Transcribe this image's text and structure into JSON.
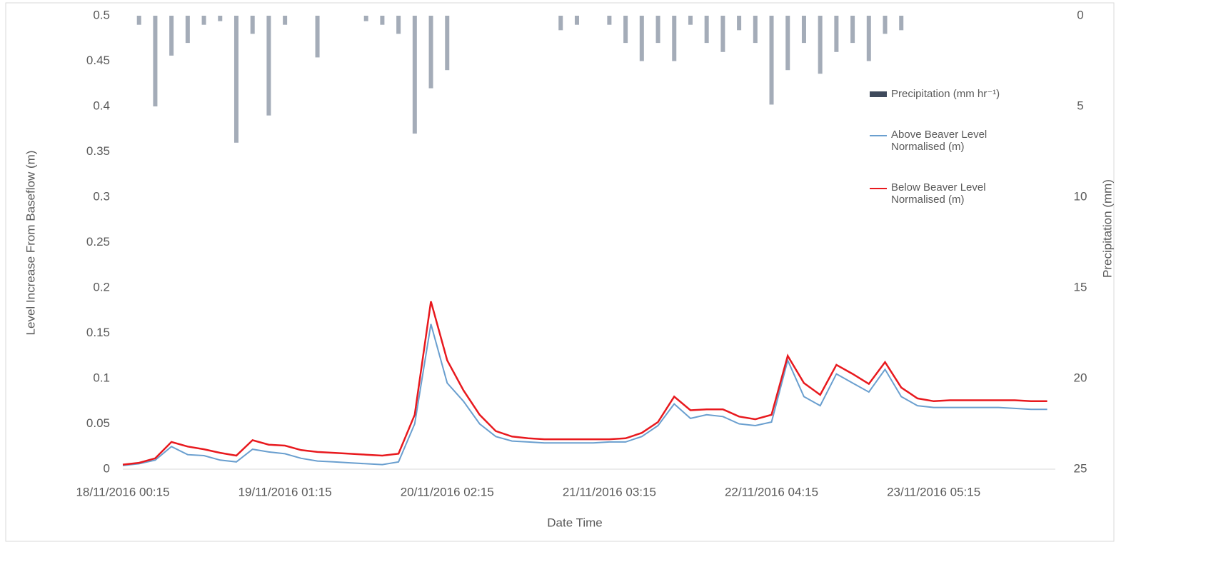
{
  "chart_data": {
    "type": "line",
    "x_label": "Date Time",
    "y_label": "Level Increase From Baseflow (m)",
    "y2_label": "Precipitation (mm)",
    "categories": [
      "18/11/2016 00:15",
      null,
      null,
      null,
      null,
      null,
      null,
      null,
      null,
      null,
      "19/11/2016 01:15",
      null,
      null,
      null,
      null,
      null,
      null,
      null,
      null,
      null,
      "20/11/2016 02:15",
      null,
      null,
      null,
      null,
      null,
      null,
      null,
      null,
      null,
      "21/11/2016 03:15",
      null,
      null,
      null,
      null,
      null,
      null,
      null,
      null,
      null,
      "22/11/2016 04:15",
      null,
      null,
      null,
      null,
      null,
      null,
      null,
      null,
      null,
      "23/11/2016 05:15",
      null,
      null,
      null,
      null,
      null,
      null,
      null
    ],
    "series": [
      {
        "name": "Precipitation (mm hr⁻¹)",
        "type": "bar",
        "axis": "y2",
        "color": "#a4acb8",
        "legend_color": "#3f4a5c",
        "values": [
          0,
          0.5,
          5,
          2.2,
          1.5,
          0.5,
          0.3,
          7,
          1,
          5.5,
          0.5,
          0,
          2.3,
          0,
          0,
          0.3,
          0.5,
          1,
          6.5,
          4,
          3,
          0,
          0,
          0,
          0,
          0,
          0,
          0.8,
          0.5,
          0,
          0.5,
          1.5,
          2.5,
          1.5,
          2.5,
          0.5,
          1.5,
          2,
          0.8,
          1.5,
          4.9,
          3,
          1.5,
          3.2,
          2,
          1.5,
          2.5,
          1,
          0.8,
          0,
          0,
          0,
          0,
          0,
          0,
          0,
          0,
          0
        ]
      },
      {
        "name": "Above Beaver Level Normalised (m)",
        "type": "line",
        "color": "#6a9fcf",
        "values": [
          0.004,
          0.006,
          0.01,
          0.025,
          0.016,
          0.015,
          0.01,
          0.008,
          0.022,
          0.019,
          0.017,
          0.012,
          0.009,
          0.008,
          0.007,
          0.006,
          0.005,
          0.008,
          0.05,
          0.16,
          0.095,
          0.075,
          0.05,
          0.036,
          0.031,
          0.03,
          0.029,
          0.029,
          0.029,
          0.029,
          0.03,
          0.03,
          0.036,
          0.048,
          0.072,
          0.056,
          0.06,
          0.058,
          0.05,
          0.048,
          0.052,
          0.12,
          0.08,
          0.07,
          0.105,
          0.095,
          0.085,
          0.11,
          0.08,
          0.07,
          0.068,
          0.068,
          0.068,
          0.068,
          0.068,
          0.067,
          0.066,
          0.066
        ]
      },
      {
        "name": "Below Beaver Level Normalised (m)",
        "type": "line",
        "color": "#e8191e",
        "values": [
          0.005,
          0.007,
          0.012,
          0.03,
          0.025,
          0.022,
          0.018,
          0.015,
          0.032,
          0.027,
          0.026,
          0.021,
          0.019,
          0.018,
          0.017,
          0.016,
          0.015,
          0.017,
          0.06,
          0.185,
          0.12,
          0.087,
          0.06,
          0.042,
          0.036,
          0.034,
          0.033,
          0.033,
          0.033,
          0.033,
          0.033,
          0.034,
          0.04,
          0.052,
          0.08,
          0.065,
          0.066,
          0.066,
          0.058,
          0.055,
          0.06,
          0.125,
          0.095,
          0.082,
          0.115,
          0.105,
          0.094,
          0.118,
          0.09,
          0.078,
          0.075,
          0.076,
          0.076,
          0.076,
          0.076,
          0.076,
          0.075,
          0.075
        ]
      }
    ],
    "ylim": [
      0,
      0.5
    ],
    "yticks": [
      0,
      0.05,
      0.1,
      0.15,
      0.2,
      0.25,
      0.3,
      0.35,
      0.4,
      0.45,
      0.5
    ],
    "y2lim": [
      25,
      0
    ],
    "y2ticks": [
      0,
      5,
      10,
      15,
      20,
      25
    ],
    "grid": false,
    "legend": "right"
  }
}
